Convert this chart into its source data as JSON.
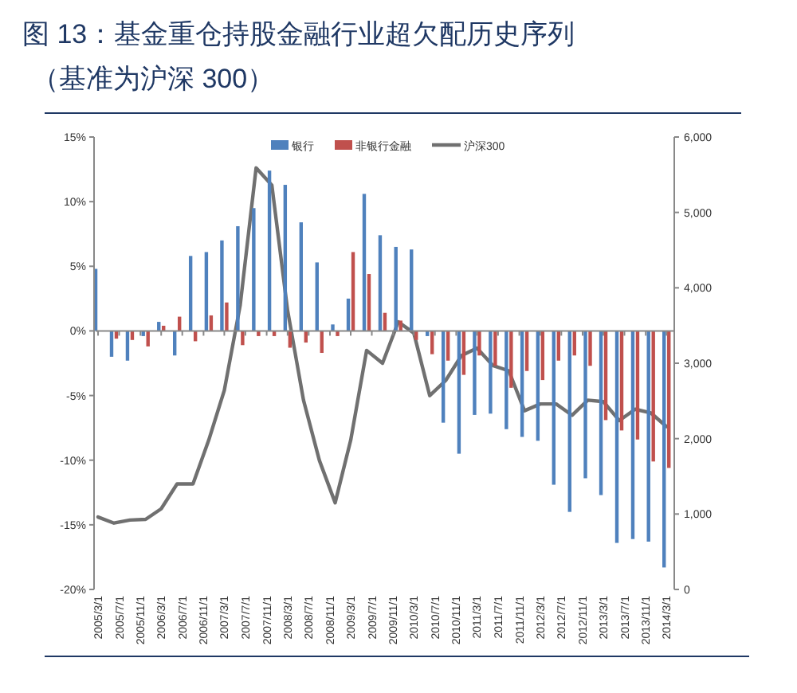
{
  "chart_data": {
    "type": "bar",
    "title": "图 13：基金重仓持股金融行业超欠配历史序列",
    "subtitle": "（基准为沪深 300）",
    "x": [
      "2005-03-01",
      "2005-06-01",
      "2005-09-01",
      "2005-12-01",
      "2006-03-01",
      "2006-06-01",
      "2006-09-01",
      "2006-12-01",
      "2007-03-01",
      "2007-06-01",
      "2007-09-01",
      "2007-12-01",
      "2008-03-01",
      "2008-06-01",
      "2008-09-01",
      "2008-12-01",
      "2009-03-01",
      "2009-06-01",
      "2009-09-01",
      "2009-12-01",
      "2010-03-01",
      "2010-06-01",
      "2010-09-01",
      "2010-12-01",
      "2011-03-01",
      "2011-06-01",
      "2011-09-01",
      "2011-12-01",
      "2012-03-01",
      "2012-06-01",
      "2012-09-01",
      "2012-12-01",
      "2013-03-01",
      "2013-06-01",
      "2013-09-01",
      "2013-12-01",
      "2014-03-01"
    ],
    "series": [
      {
        "name": "银行",
        "color": "#4f81bd",
        "values": [
          4.8,
          -2.0,
          -2.3,
          -0.4,
          0.7,
          -1.9,
          5.8,
          6.1,
          7.0,
          8.1,
          9.5,
          12.4,
          11.3,
          8.4,
          5.3,
          0.5,
          2.5,
          10.6,
          7.4,
          6.5,
          6.3,
          -0.4,
          -7.1,
          -9.5,
          -6.5,
          -6.4,
          -7.6,
          -8.2,
          -8.5,
          -11.9,
          -14.0,
          -11.4,
          -12.7,
          -16.4,
          -16.1,
          -16.3,
          -18.3
        ]
      },
      {
        "name": "非银行金融",
        "color": "#c0504d",
        "values": [
          null,
          -0.6,
          -0.7,
          -1.2,
          0.4,
          1.1,
          -0.8,
          1.2,
          2.2,
          -1.1,
          -0.4,
          -0.4,
          -1.3,
          -0.9,
          -1.7,
          -0.4,
          6.1,
          4.4,
          1.4,
          0.8,
          -0.7,
          -1.8,
          -2.3,
          -3.4,
          -1.9,
          -2.7,
          -4.4,
          -3.1,
          -3.8,
          -2.3,
          -1.9,
          -2.7,
          -6.9,
          -7.7,
          -8.4,
          -10.1,
          -10.6
        ]
      },
      {
        "name": "沪深300",
        "type": "line",
        "axis": "y2",
        "color": "#707070",
        "values": [
          960,
          880,
          920,
          930,
          1070,
          1400,
          1400,
          1980,
          2640,
          3770,
          5590,
          5360,
          3700,
          2510,
          1710,
          1150,
          1980,
          3170,
          3000,
          3550,
          3400,
          2570,
          2770,
          3100,
          3200,
          2970,
          2900,
          2370,
          2460,
          2460,
          2310,
          2510,
          2490,
          2240,
          2390,
          2340,
          2160
        ]
      }
    ],
    "xlim": [
      "2005-02-15",
      "2014-04-15"
    ],
    "xticks": [
      {
        "value": "2005-03-01",
        "label": "2005/3/1"
      },
      {
        "value": "2005-07-01",
        "label": "2005/7/1"
      },
      {
        "value": "2005-11-01",
        "label": "2005/11/1"
      },
      {
        "value": "2006-03-01",
        "label": "2006/3/1"
      },
      {
        "value": "2006-07-01",
        "label": "2006/7/1"
      },
      {
        "value": "2006-11-01",
        "label": "2006/11/1"
      },
      {
        "value": "2007-03-01",
        "label": "2007/3/1"
      },
      {
        "value": "2007-07-01",
        "label": "2007/7/1"
      },
      {
        "value": "2007-11-01",
        "label": "2007/11/1"
      },
      {
        "value": "2008-03-01",
        "label": "2008/3/1"
      },
      {
        "value": "2008-07-01",
        "label": "2008/7/1"
      },
      {
        "value": "2008-11-01",
        "label": "2008/11/1"
      },
      {
        "value": "2009-03-01",
        "label": "2009/3/1"
      },
      {
        "value": "2009-07-01",
        "label": "2009/7/1"
      },
      {
        "value": "2009-11-01",
        "label": "2009/11/1"
      },
      {
        "value": "2010-03-01",
        "label": "2010/3/1"
      },
      {
        "value": "2010-07-01",
        "label": "2010/7/1"
      },
      {
        "value": "2010-11-01",
        "label": "2010/11/1"
      },
      {
        "value": "2011-03-01",
        "label": "2011/3/1"
      },
      {
        "value": "2011-07-01",
        "label": "2011/7/1"
      },
      {
        "value": "2011-11-01",
        "label": "2011/11/1"
      },
      {
        "value": "2012-03-01",
        "label": "2012/3/1"
      },
      {
        "value": "2012-07-01",
        "label": "2012/7/1"
      },
      {
        "value": "2012-11-01",
        "label": "2012/11/1"
      },
      {
        "value": "2013-03-01",
        "label": "2013/3/1"
      },
      {
        "value": "2013-07-01",
        "label": "2013/7/1"
      },
      {
        "value": "2013-11-01",
        "label": "2013/11/1"
      },
      {
        "value": "2014-03-01",
        "label": "2014/3/1"
      }
    ],
    "ylim": [
      -20,
      15
    ],
    "yticks": [
      {
        "value": -20,
        "label": "-20%"
      },
      {
        "value": -15,
        "label": "-15%"
      },
      {
        "value": -10,
        "label": "-10%"
      },
      {
        "value": -5,
        "label": "-5%"
      },
      {
        "value": 0,
        "label": "0%"
      },
      {
        "value": 5,
        "label": "5%"
      },
      {
        "value": 10,
        "label": "10%"
      },
      {
        "value": 15,
        "label": "15%"
      }
    ],
    "y2lim": [
      0,
      6000
    ],
    "y2ticks": [
      0,
      {
        "value": 1000,
        "label": "1,000"
      },
      {
        "value": 2000,
        "label": "2,000"
      },
      {
        "value": 3000,
        "label": "3,000"
      },
      {
        "value": 4000,
        "label": "4,000"
      },
      {
        "value": 5000,
        "label": "5,000"
      },
      {
        "value": 6000,
        "label": "6,000"
      }
    ],
    "legend": "top"
  }
}
